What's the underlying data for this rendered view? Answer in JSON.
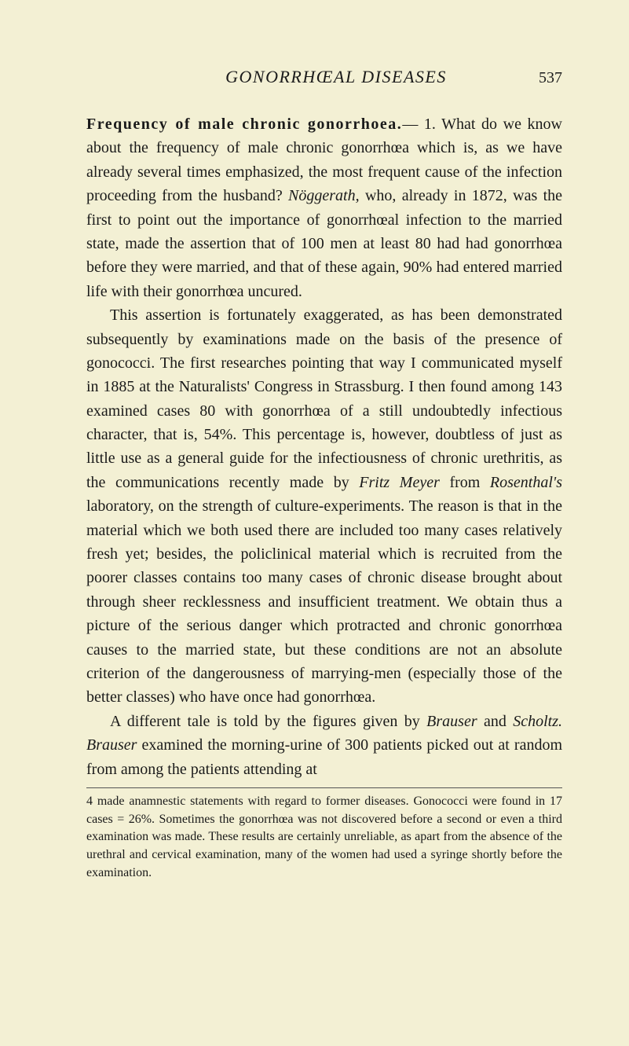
{
  "page": {
    "running_title": "GONORRHŒAL DISEASES",
    "number": "537"
  },
  "section": {
    "heading": "Frequency of male chronic gonorrhoea."
  },
  "paragraphs": {
    "p1_pre": "— 1. What do we know about the frequency of male chronic gonorrhœa which is, as we have already several times empha­sized, the most frequent cause of the infection proceeding from the husband? ",
    "p1_italic1": "Nöggerath,",
    "p1_mid": " who, already in 1872, was the first to point out the importance of gonorrhœal infection to the married state, made the assertion that of 100 men at least 80 had had gonorrhœa before they were married, and that of these again, 90% had entered married life with their gonor­rhœa uncured.",
    "p2_a": "This assertion is fortunately exaggerated, as has been demon­strated subsequently by examinations made on the basis of the presence of gonococci. The first researches pointing that way I communicated myself in 1885 at the Naturalists' Congress in Strassburg. I then found among 143 examined cases 80 with gonorrhœa of a still undoubtedly infectious character, that is, 54%. This percentage is, however, doubtless of just as little use as a general guide for the infectiousness of chronic urethritis, as the communications recently made by ",
    "p2_italic1": "Fritz Meyer",
    "p2_b": " from ",
    "p2_italic2": "Rosenthal's",
    "p2_c": " laboratory, on the strength of culture-experi­ments. The reason is that in the material which we both used there are included too many cases relatively fresh yet; besides, the policlinical material which is recruited from the poorer classes contains too many cases of chronic disease brought about through sheer recklessness and insufficient treatment. We obtain thus a picture of the serious danger which protracted and chronic gonorrhœa causes to the married state, but these conditions are not an absolute criterion of the dangerousness of marrying-men (especially those of the better classes) who have once had gonorrhœa.",
    "p3_a": "A different tale is told by the figures given by ",
    "p3_italic1": "Brauser",
    "p3_b": " and ",
    "p3_italic2": "Scholtz.",
    "p3_c": " ",
    "p3_italic3": "Brauser",
    "p3_d": " examined the morning-urine of 300 patients picked out at random from among the patients attending at"
  },
  "footnote": {
    "text": "4 made anamnestic statements with regard to former diseases. Gonococci were found in 17 cases = 26%. Sometimes the gonorrhœa was not discovered before a second or even a third examination was made. These results are certainly unreliable, as apart from the absence of the urethral and cervical examination, many of the women had used a syringe shortly before the examination."
  },
  "colors": {
    "background": "#f3f0d4",
    "text": "#1a1a1a",
    "rule": "#555555"
  },
  "typography": {
    "body_fontsize": 20,
    "footnote_fontsize": 16,
    "header_fontsize": 22,
    "line_height": 1.52
  }
}
